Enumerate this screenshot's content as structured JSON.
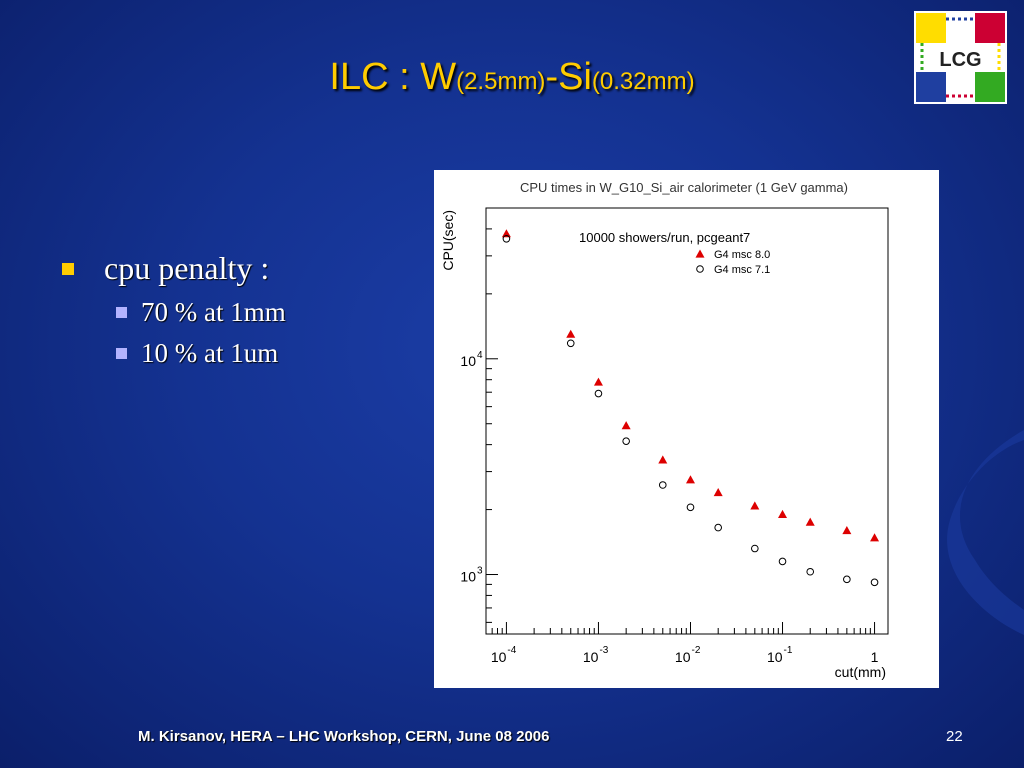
{
  "slide": {
    "title_main": "ILC : W",
    "title_sub1": "(2.5mm)",
    "title_mid": "-Si",
    "title_sub2": "(0.32mm)",
    "footer": "M. Kirsanov, HERA – LHC Workshop, CERN, June 08 2006",
    "page_number": "22",
    "logo_text": "LCG",
    "bullets": {
      "main": "cpu penalty :",
      "sub": [
        "70 % at 1mm",
        "10 % at 1um"
      ]
    },
    "colors": {
      "title": "#ffcc00",
      "bullet": "#ffcc00",
      "sub_bullet": "#b3b3ff",
      "series_g4_8": "#dd0000"
    }
  },
  "chart_data": {
    "type": "scatter",
    "title": "CPU times in W_G10_Si_air calorimeter (1 GeV gamma)",
    "annotation": "10000 showers/run, pcgeant7",
    "xlabel": "cut(mm)",
    "ylabel": "CPU(sec)",
    "x_scale": "log",
    "y_scale": "log",
    "xlim": [
      6e-05,
      1.4
    ],
    "ylim": [
      530,
      50000
    ],
    "x_ticks": [
      {
        "value": 0.0001,
        "base": "10",
        "exp": "-4"
      },
      {
        "value": 0.001,
        "base": "10",
        "exp": "-3"
      },
      {
        "value": 0.01,
        "base": "10",
        "exp": "-2"
      },
      {
        "value": 0.1,
        "base": "10",
        "exp": "-1"
      },
      {
        "value": 1,
        "base": "1",
        "exp": ""
      }
    ],
    "y_ticks": [
      {
        "value": 1000,
        "base": "10",
        "exp": "3"
      },
      {
        "value": 10000,
        "base": "10",
        "exp": "4"
      }
    ],
    "legend_position": "top-right",
    "series": [
      {
        "name": "G4 msc 8.0",
        "marker": "triangle",
        "color": "#dd0000",
        "points": [
          [
            0.0001,
            38000
          ],
          [
            0.0005,
            13000
          ],
          [
            0.001,
            7800
          ],
          [
            0.002,
            4900
          ],
          [
            0.005,
            3400
          ],
          [
            0.01,
            2750
          ],
          [
            0.02,
            2400
          ],
          [
            0.05,
            2080
          ],
          [
            0.1,
            1900
          ],
          [
            0.2,
            1750
          ],
          [
            0.5,
            1600
          ],
          [
            1,
            1480
          ]
        ]
      },
      {
        "name": "G4 msc 7.1",
        "marker": "circle",
        "color": "#000000",
        "points": [
          [
            0.0001,
            36000
          ],
          [
            0.0005,
            11800
          ],
          [
            0.001,
            6900
          ],
          [
            0.002,
            4150
          ],
          [
            0.005,
            2600
          ],
          [
            0.01,
            2050
          ],
          [
            0.02,
            1650
          ],
          [
            0.05,
            1320
          ],
          [
            0.1,
            1150
          ],
          [
            0.2,
            1030
          ],
          [
            0.5,
            950
          ],
          [
            1,
            920
          ]
        ]
      }
    ]
  }
}
